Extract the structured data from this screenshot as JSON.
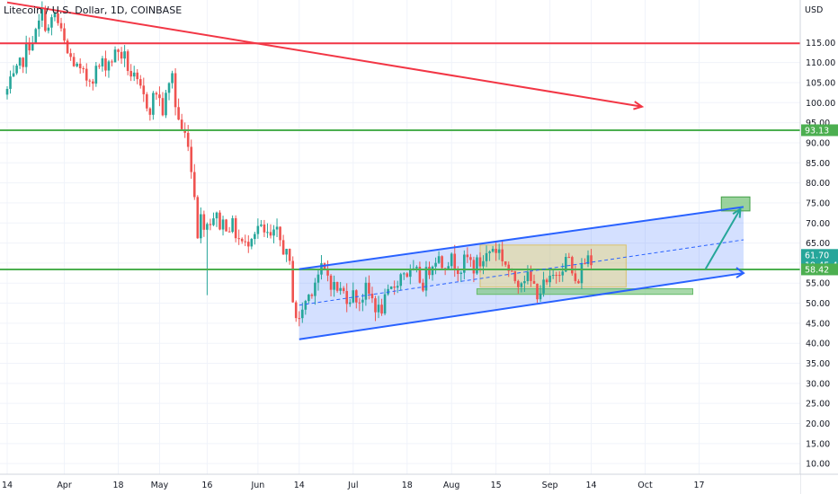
{
  "chart_data": {
    "type": "candlestick",
    "title": "Litecoin / U.S. Dollar, 1D, COINBASE",
    "currency_label": "USD",
    "ylim": [
      2,
      120.5
    ],
    "y_ticks": [
      5,
      10,
      15,
      20,
      25,
      30,
      35,
      40,
      45,
      50,
      55,
      60,
      65,
      70,
      75,
      80,
      85,
      90,
      95,
      100,
      105,
      110,
      115
    ],
    "y_tick_labels": [
      "5.00",
      "10.00",
      "15.00",
      "20.00",
      "25.00",
      "30.00",
      "35.00",
      "40.00",
      "45.00",
      "50.00",
      "55.00",
      "60.00",
      "65.00",
      "70.00",
      "75.00",
      "80.00",
      "85.00",
      "90.00",
      "95.00",
      "100.00",
      "105.00",
      "110.00",
      "115.00"
    ],
    "x_ticks": [
      {
        "label": "14",
        "day": 0
      },
      {
        "label": "Apr",
        "day": 18
      },
      {
        "label": "18",
        "day": 35
      },
      {
        "label": "May",
        "day": 48
      },
      {
        "label": "16",
        "day": 63
      },
      {
        "label": "Jun",
        "day": 79
      },
      {
        "label": "14",
        "day": 92
      },
      {
        "label": "Jul",
        "day": 109
      },
      {
        "label": "18",
        "day": 126
      },
      {
        "label": "Aug",
        "day": 140
      },
      {
        "label": "15",
        "day": 154
      },
      {
        "label": "Sep",
        "day": 171
      },
      {
        "label": "14",
        "day": 184
      },
      {
        "label": "Oct",
        "day": 201
      },
      {
        "label": "17",
        "day": 218
      }
    ],
    "price_tags": [
      {
        "label": "93.13",
        "price": 93.13,
        "color": "#4caf50"
      },
      {
        "label": "61.70",
        "price": 61.7,
        "color": "#26a69a",
        "sub": "19:45:47"
      },
      {
        "label": "58.42",
        "price": 58.42,
        "color": "#4caf50"
      }
    ],
    "horizontal_lines": [
      {
        "price": 114.8,
        "color": "#f23645"
      },
      {
        "price": 93.13,
        "color": "#4caf50"
      },
      {
        "price": 58.42,
        "color": "#4caf50"
      }
    ],
    "anchors": [
      [
        0,
        103
      ],
      [
        3,
        107
      ],
      [
        5,
        111
      ],
      [
        7,
        115
      ],
      [
        9,
        117
      ],
      [
        11,
        122
      ],
      [
        13,
        118
      ],
      [
        15,
        122
      ],
      [
        17,
        117
      ],
      [
        19,
        112
      ],
      [
        21,
        110
      ],
      [
        23,
        107
      ],
      [
        25,
        106
      ],
      [
        27,
        107
      ],
      [
        29,
        109
      ],
      [
        31,
        110
      ],
      [
        33,
        111
      ],
      [
        35,
        113
      ],
      [
        37,
        111
      ],
      [
        39,
        107
      ],
      [
        41,
        104
      ],
      [
        43,
        101
      ],
      [
        45,
        99
      ],
      [
        47,
        103
      ],
      [
        49,
        98
      ],
      [
        51,
        104
      ],
      [
        52,
        108
      ],
      [
        53,
        99
      ],
      [
        55,
        93
      ],
      [
        57,
        91
      ],
      [
        58,
        83
      ],
      [
        59,
        78
      ],
      [
        60,
        68
      ],
      [
        61,
        71
      ],
      [
        63,
        70
      ],
      [
        65,
        72
      ],
      [
        67,
        70
      ],
      [
        69,
        70
      ],
      [
        71,
        69
      ],
      [
        73,
        66
      ],
      [
        75,
        64
      ],
      [
        77,
        68
      ],
      [
        79,
        69
      ],
      [
        81,
        67
      ],
      [
        83,
        66
      ],
      [
        85,
        67
      ],
      [
        87,
        64
      ],
      [
        89,
        59
      ],
      [
        90,
        52
      ],
      [
        91,
        47
      ],
      [
        92,
        45
      ],
      [
        93,
        49
      ],
      [
        95,
        52
      ],
      [
        97,
        56
      ],
      [
        99,
        58
      ],
      [
        101,
        57
      ],
      [
        103,
        54
      ],
      [
        105,
        53
      ],
      [
        107,
        52
      ],
      [
        109,
        52
      ],
      [
        111,
        51
      ],
      [
        113,
        53
      ],
      [
        115,
        51
      ],
      [
        117,
        48
      ],
      [
        119,
        50
      ],
      [
        121,
        53
      ],
      [
        123,
        56
      ],
      [
        125,
        58
      ],
      [
        127,
        57
      ],
      [
        129,
        57
      ],
      [
        131,
        55
      ],
      [
        133,
        59
      ],
      [
        135,
        62
      ],
      [
        137,
        60
      ],
      [
        139,
        61
      ],
      [
        141,
        60
      ],
      [
        143,
        59
      ],
      [
        145,
        61
      ],
      [
        147,
        59
      ],
      [
        149,
        60
      ],
      [
        151,
        62
      ],
      [
        153,
        64
      ],
      [
        155,
        63
      ],
      [
        157,
        60
      ],
      [
        159,
        56
      ],
      [
        161,
        56
      ],
      [
        163,
        57
      ],
      [
        165,
        55
      ],
      [
        167,
        53
      ],
      [
        169,
        54
      ],
      [
        171,
        55
      ],
      [
        173,
        58
      ],
      [
        175,
        60
      ],
      [
        177,
        61
      ],
      [
        179,
        54
      ],
      [
        181,
        59
      ],
      [
        183,
        62
      ],
      [
        184,
        61.7
      ]
    ],
    "wick_spikes": [
      {
        "day": 63,
        "low": 52
      }
    ],
    "trend_lines": [
      {
        "from": [
          0,
          125
        ],
        "to": [
          200,
          99
        ],
        "color": "#f23645"
      }
    ],
    "channel": {
      "lower": [
        [
          92,
          41
        ],
        [
          232,
          57.5
        ]
      ],
      "upper": [
        [
          92,
          58.5
        ],
        [
          232,
          74
        ]
      ],
      "midline": [
        [
          92,
          49.5
        ],
        [
          232,
          65.8
        ]
      ]
    },
    "rectangles": [
      {
        "name": "range-box",
        "x": [
          149,
          195
        ],
        "y": [
          54,
          64.5
        ],
        "fill": "rgba(235,212,110,0.45)",
        "stroke": "#d9c16a"
      },
      {
        "name": "support-box",
        "x": [
          148,
          216
        ],
        "y": [
          52.2,
          53.6
        ],
        "fill": "rgba(129,199,132,0.7)",
        "stroke": "#66bb6a"
      },
      {
        "name": "target-box",
        "x": [
          225,
          234
        ],
        "y": [
          73,
          76.5
        ],
        "fill": "rgba(129,199,132,0.8)",
        "stroke": "#43a047"
      }
    ],
    "projection_arrow": {
      "points": [
        [
          220,
          58.5
        ],
        [
          231,
          73.5
        ]
      ],
      "color": "#26a69a"
    },
    "channel_arrow": {
      "points": [
        [
          232,
          57.5
        ]
      ],
      "color": "#2962ff"
    }
  }
}
